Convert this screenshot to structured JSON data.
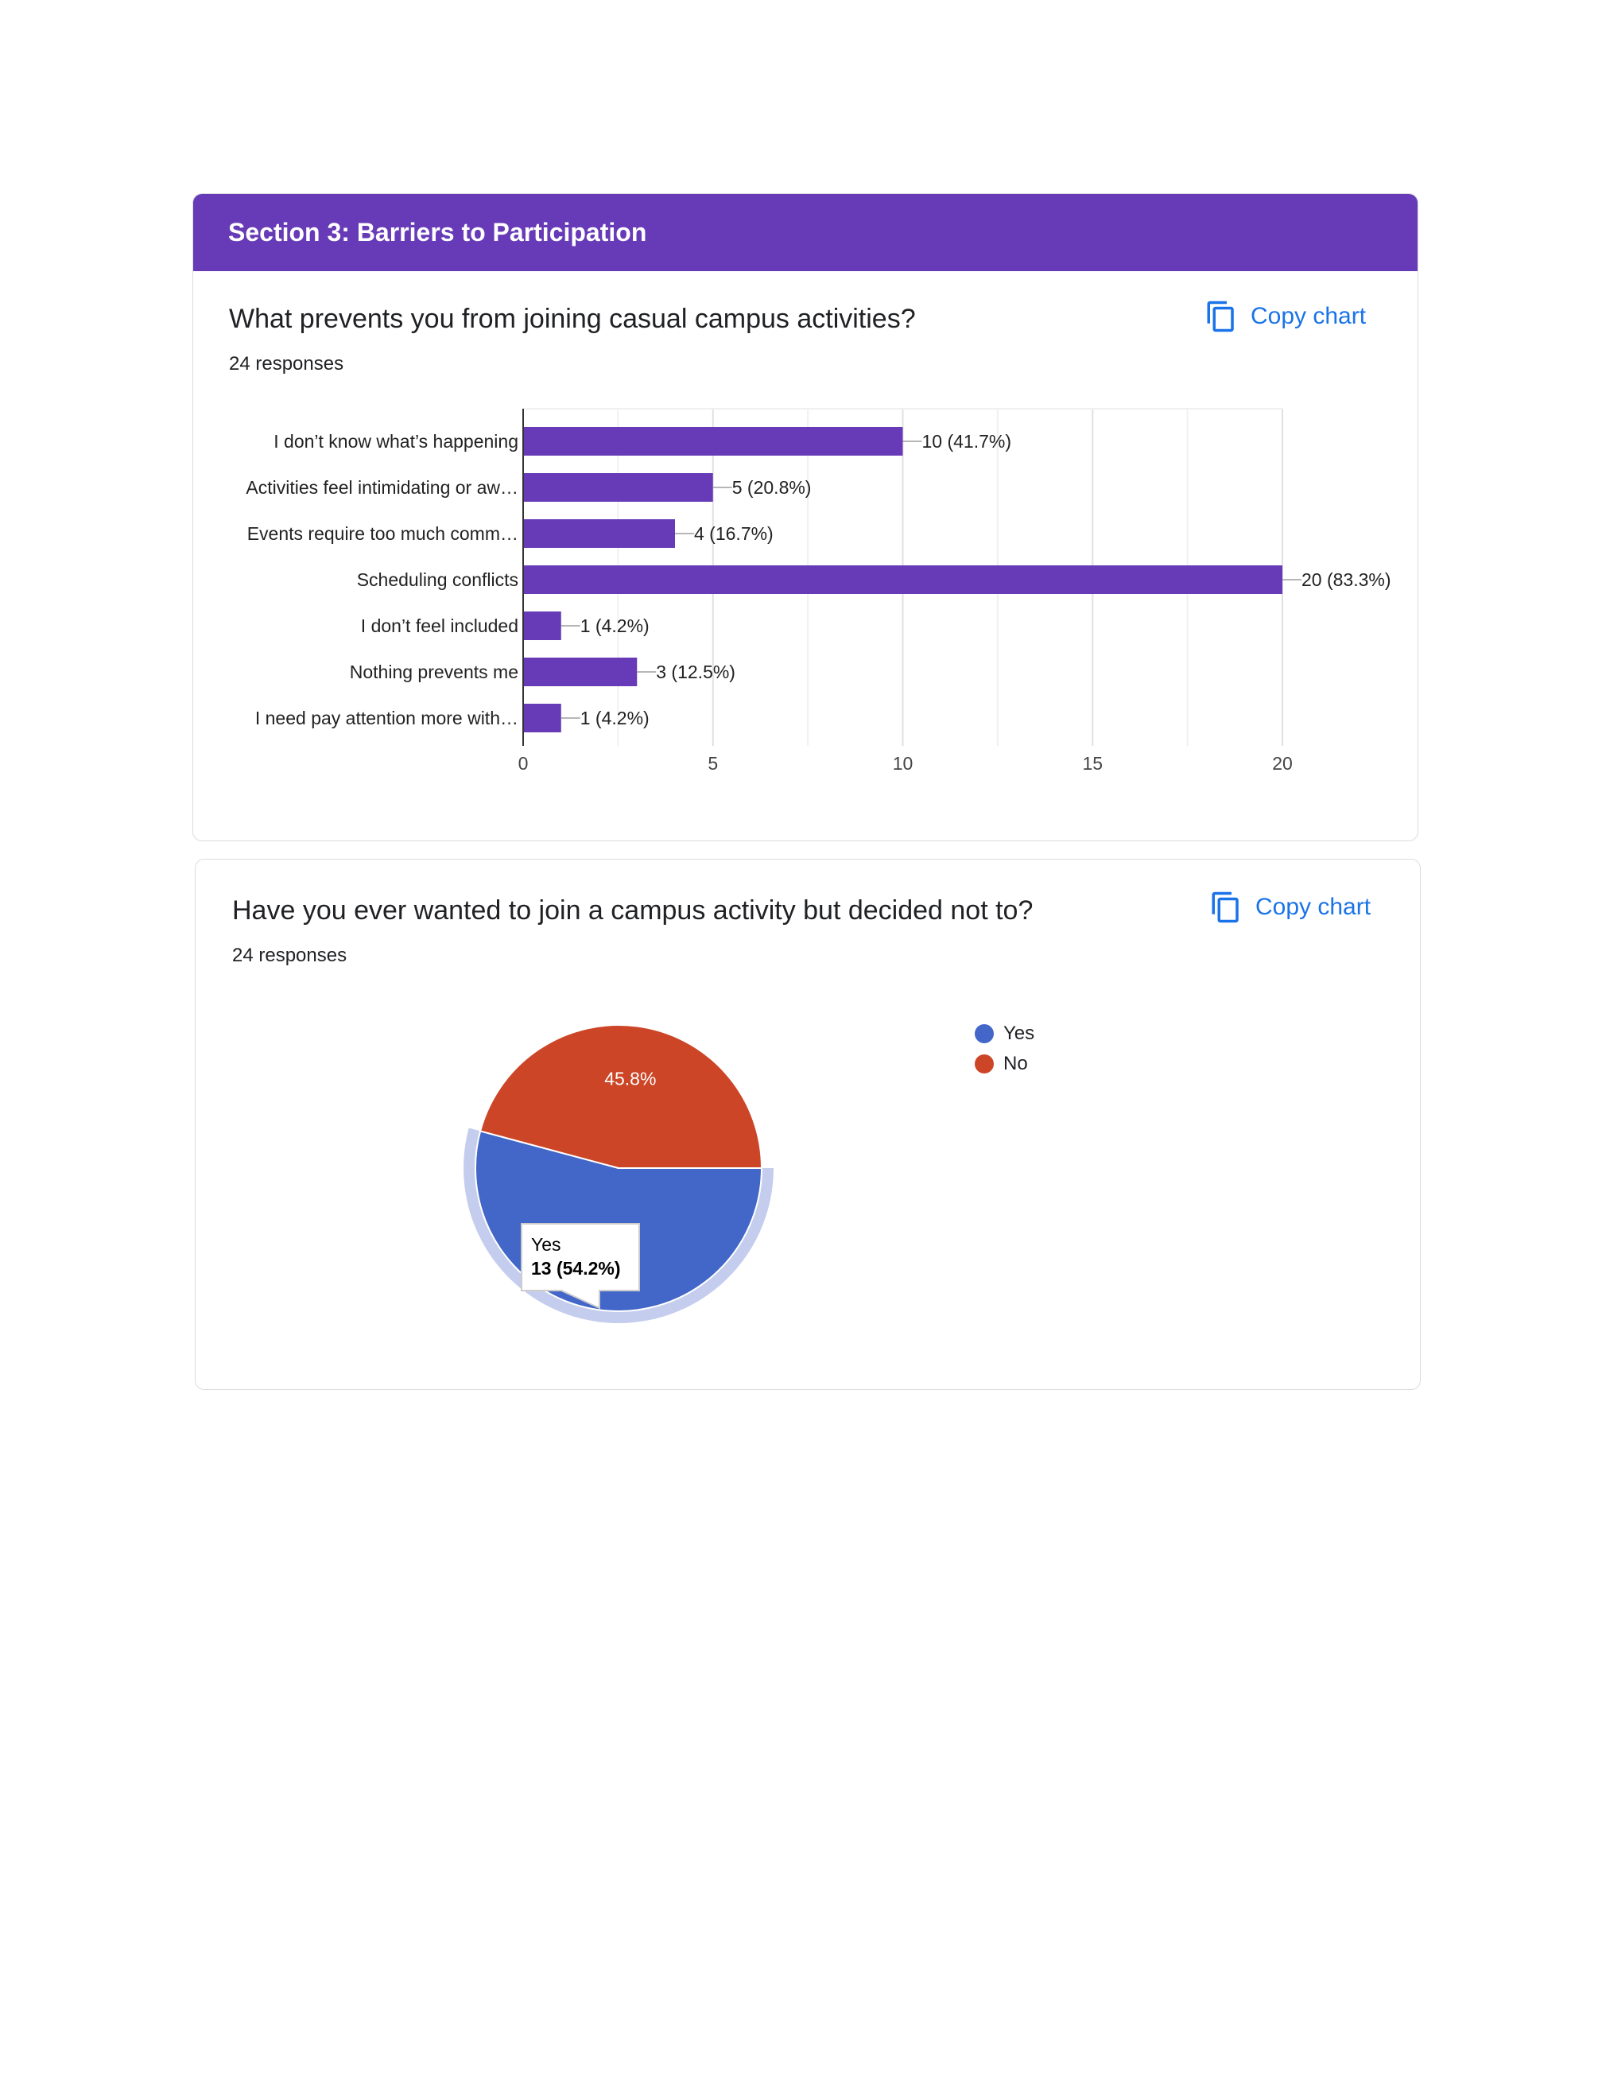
{
  "section": {
    "title": "Section 3: Barriers to Participation"
  },
  "q1": {
    "title": "What prevents you from joining casual campus activities?",
    "responses": "24 responses",
    "copy_label": "Copy chart"
  },
  "q2": {
    "title": "Have you ever wanted to join a campus activity but decided not to?",
    "responses": "24 responses",
    "copy_label": "Copy chart",
    "tooltip": {
      "label": "Yes",
      "value": "13 (54.2%)"
    },
    "slice_label": "45.8%"
  },
  "colors": {
    "accent": "#673ab7",
    "bar": "#673ab7",
    "yes": "#4267c8",
    "no": "#cc4526",
    "link": "#1a73e8"
  },
  "chart_data": [
    {
      "type": "bar",
      "orientation": "horizontal",
      "categories": [
        "I don’t know what’s happening",
        "Activities feel intimidating or aw…",
        "Events require too much comm…",
        "Scheduling conflicts",
        "I don’t feel included",
        "Nothing prevents me",
        "I need pay attention more with…"
      ],
      "values": [
        10,
        5,
        4,
        20,
        1,
        3,
        1
      ],
      "data_labels": [
        "10 (41.7%)",
        "5 (20.8%)",
        "4 (16.7%)",
        "20 (83.3%)",
        "1 (4.2%)",
        "3 (12.5%)",
        "1 (4.2%)"
      ],
      "xlim": [
        0,
        20
      ],
      "xticks": [
        "0",
        "5",
        "10",
        "15",
        "20"
      ],
      "grid": true
    },
    {
      "type": "pie",
      "labels": [
        "Yes",
        "No"
      ],
      "values": [
        13,
        11
      ],
      "percent_labels": [
        "54.2%",
        "45.8%"
      ],
      "legend": [
        "Yes",
        "No"
      ],
      "legend_position": "right"
    }
  ]
}
